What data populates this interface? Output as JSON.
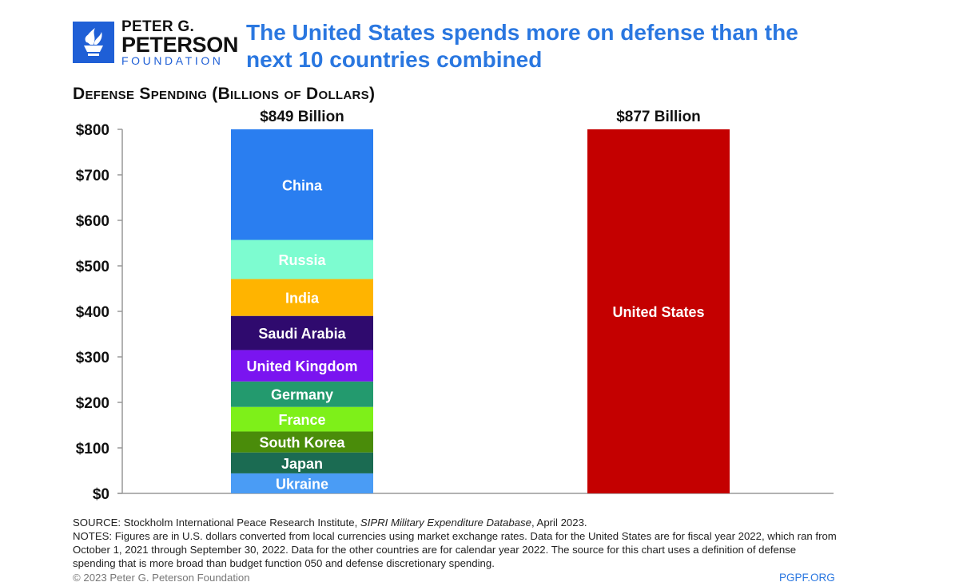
{
  "logo": {
    "icon": "torch-icon",
    "line1": "PETER G.",
    "line2": "PETERSON",
    "line3": "FOUNDATION"
  },
  "footer": {
    "source_prefix": "SOURCE: Stockholm International Peace Research Institute, ",
    "source_italic": "SIPRI Military Expenditure Database",
    "source_suffix": ", April 2023.",
    "notes": "NOTES: Figures are in U.S. dollars converted from local currencies using market exchange rates. Data for the United States are for fiscal year 2022, which ran from October 1, 2021 through September 30, 2022. Data for the other countries are for calendar year 2022. The source for this chart uses a definition of defense spending that is more broad than budget function 050 and defense discretionary spending.",
    "copyright": "© 2023 Peter G. Peterson Foundation",
    "site": "PGPF.ORG"
  },
  "chart_data": {
    "type": "bar",
    "stacked": true,
    "title": "The United States spends more on defense than the next 10 countries combined",
    "ylabel": "Defense Spending (Billions of Dollars)",
    "xlabel": "",
    "ylim": [
      0,
      800
    ],
    "yticks": [
      0,
      100,
      200,
      300,
      400,
      500,
      600,
      700,
      800
    ],
    "ytick_labels": [
      "$0",
      "$100",
      "$200",
      "$300",
      "$400",
      "$500",
      "$600",
      "$700",
      "$800"
    ],
    "grid": false,
    "clip_at_axis_max": true,
    "bars": [
      {
        "name": "Next 10 countries",
        "total_label": "$849 Billion",
        "total": 849,
        "segments": [
          {
            "label": "Ukraine",
            "value": 44,
            "color": "#4a9cf5",
            "text_color": "#ffffff"
          },
          {
            "label": "Japan",
            "value": 46,
            "color": "#1b6b52",
            "text_color": "#ffffff"
          },
          {
            "label": "South Korea",
            "value": 46,
            "color": "#4a8c0a",
            "text_color": "#ffffff"
          },
          {
            "label": "France",
            "value": 54,
            "color": "#7ef019",
            "text_color": "#ffffff"
          },
          {
            "label": "Germany",
            "value": 56,
            "color": "#239a6e",
            "text_color": "#ffffff"
          },
          {
            "label": "United Kingdom",
            "value": 69,
            "color": "#7a14f0",
            "text_color": "#ffffff"
          },
          {
            "label": "Saudi Arabia",
            "value": 75,
            "color": "#2f0a6e",
            "text_color": "#ffffff"
          },
          {
            "label": "India",
            "value": 81,
            "color": "#ffb400",
            "text_color": "#ffffff"
          },
          {
            "label": "Russia",
            "value": 86,
            "color": "#7dfcd0",
            "text_color": "#ffffff"
          },
          {
            "label": "China",
            "value": 292,
            "color": "#2a7ef0",
            "text_color": "#ffffff"
          }
        ]
      },
      {
        "name": "United States",
        "total_label": "$877 Billion",
        "total": 877,
        "segments": [
          {
            "label": "United States",
            "value": 877,
            "color": "#c40000",
            "text_color": "#ffffff"
          }
        ]
      }
    ]
  }
}
